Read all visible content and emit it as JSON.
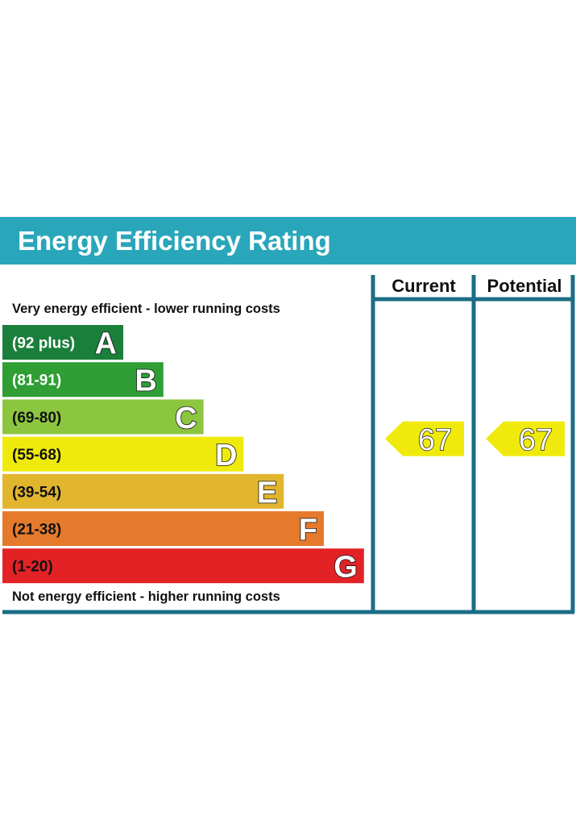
{
  "title": "Energy Efficiency Rating",
  "columns": {
    "current": "Current",
    "potential": "Potential"
  },
  "top_note": "Very energy efficient - lower running costs",
  "bottom_note": "Not energy efficient - higher running costs",
  "colors": {
    "header": "#2aa6bb",
    "frame": "#1c6d86",
    "A": "#1a7f3b",
    "B": "#2f9e35",
    "C": "#8cc63f",
    "D": "#f0ea0c",
    "E": "#e2b52f",
    "F": "#e57a2c",
    "G": "#e32226",
    "arrow": "#f0ea0c"
  },
  "chart_data": {
    "type": "bar",
    "title": "Energy Efficiency Rating",
    "categories": [
      "A",
      "B",
      "C",
      "D",
      "E",
      "F",
      "G"
    ],
    "bands": [
      {
        "letter": "A",
        "range": "(92 plus)",
        "min": 92,
        "max": 100
      },
      {
        "letter": "B",
        "range": "(81-91)",
        "min": 81,
        "max": 91
      },
      {
        "letter": "C",
        "range": "(69-80)",
        "min": 69,
        "max": 80
      },
      {
        "letter": "D",
        "range": "(55-68)",
        "min": 55,
        "max": 68
      },
      {
        "letter": "E",
        "range": "(39-54)",
        "min": 39,
        "max": 54
      },
      {
        "letter": "F",
        "range": "(21-38)",
        "min": 21,
        "max": 38
      },
      {
        "letter": "G",
        "range": "(1-20)",
        "min": 1,
        "max": 20
      }
    ],
    "ratings": [
      {
        "column": "Current",
        "value": 67,
        "band": "D"
      },
      {
        "column": "Potential",
        "value": 67,
        "band": "D"
      }
    ]
  }
}
